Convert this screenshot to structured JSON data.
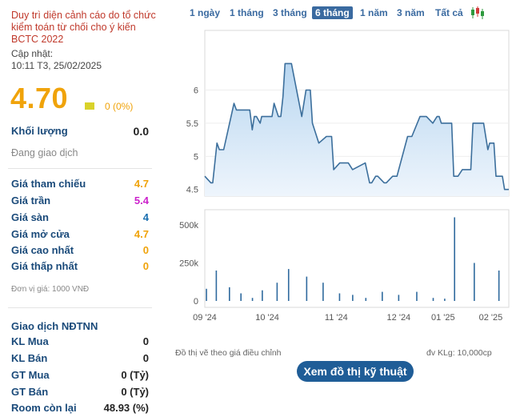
{
  "notice": "Duy trì diện cảnh cáo do tổ chức kiểm toán từ chối cho ý kiến BCTC 2022",
  "updated_label": "Cập nhật:",
  "updated_time": "10:11 T3, 25/02/2025",
  "price": "4.70",
  "change": "0 (0%)",
  "volume_label": "Khối lượng",
  "volume_value": "0.0",
  "trading_status": "Đang giao dịch",
  "price_rows": [
    {
      "label": "Giá tham chiếu",
      "value": "4.7"
    },
    {
      "label": "Giá trần",
      "value": "5.4"
    },
    {
      "label": "Giá sàn",
      "value": "4"
    },
    {
      "label": "Giá mở cửa",
      "value": "4.7"
    },
    {
      "label": "Giá cao nhất",
      "value": "0"
    },
    {
      "label": "Giá thấp nhất",
      "value": "0"
    }
  ],
  "unit_note": "Đơn vị giá: 1000 VNĐ",
  "foreign_title": "Giao dịch NĐTNN",
  "foreign_rows": [
    {
      "label": "KL Mua",
      "value": "0"
    },
    {
      "label": "KL Bán",
      "value": "0"
    },
    {
      "label": "GT Mua",
      "value": "0 (Tỷ)"
    },
    {
      "label": "GT Bán",
      "value": "0 (Tỷ)"
    },
    {
      "label": "Room còn lại",
      "value": "48.93 (%)"
    }
  ],
  "colors": {
    "ceiling": "#cc22cc",
    "floor": "#1a6fb0",
    "reference": "#f0a30a",
    "brand": "#1a4a7a",
    "price_line": "#3c6f9c",
    "area_fill": "#b8d6f0"
  },
  "ranges": [
    {
      "label": "1 ngày",
      "active": false
    },
    {
      "label": "1 tháng",
      "active": false
    },
    {
      "label": "3 tháng",
      "active": false
    },
    {
      "label": "6 tháng",
      "active": true
    },
    {
      "label": "1 năm",
      "active": false
    },
    {
      "label": "3 năm",
      "active": false
    },
    {
      "label": "Tất cả",
      "active": false
    }
  ],
  "chart_type_icon": "candlestick-icon",
  "adjusted_note": "Đồ thị vẽ theo giá điều chỉnh",
  "volume_unit_note": "đv KLg: 10,000cp",
  "tech_button": "Xem đồ thị kỹ thuật",
  "chart_data": [
    {
      "type": "area",
      "ylim": [
        4.4,
        6.9
      ],
      "yticks": [
        4.5,
        5,
        5.5,
        6
      ],
      "ytick_labels": [
        "4.5",
        "5",
        "5.5",
        "6"
      ],
      "xlim": [
        0,
        100
      ],
      "x": [
        0,
        2,
        2.6,
        4,
        4.8,
        6.2,
        9.6,
        10.4,
        14.8,
        15.6,
        16.3,
        17,
        18.2,
        18.7,
        22.1,
        22.8,
        24.2,
        25,
        25.7,
        26.4,
        28.5,
        31.9,
        33.3,
        34,
        34.7,
        35.4,
        37.5,
        40,
        41.7,
        42.4,
        44.4,
        45.2,
        47.2,
        48.6,
        52.8,
        54.2,
        54.9,
        56.2,
        56.9,
        59,
        59.7,
        61.8,
        62.5,
        63.2,
        66.7,
        68.1,
        70.8,
        72.9,
        75,
        76.4,
        77.1,
        77.8,
        81.2,
        81.9,
        83.3,
        84.7,
        86.1,
        87.5,
        88.2,
        90.3,
        91.7,
        93.1,
        93.7,
        95.1,
        95.8,
        96.5,
        97.9,
        98.6,
        100
      ],
      "y": [
        4.7,
        4.6,
        4.6,
        5.2,
        5.1,
        5.1,
        5.8,
        5.7,
        5.7,
        5.4,
        5.6,
        5.6,
        5.5,
        5.6,
        5.6,
        5.8,
        5.6,
        5.6,
        5.9,
        6.4,
        6.4,
        5.6,
        6.0,
        6.0,
        6.0,
        5.5,
        5.2,
        5.3,
        5.3,
        4.8,
        4.9,
        4.9,
        4.9,
        4.8,
        4.9,
        4.6,
        4.6,
        4.7,
        4.7,
        4.6,
        4.6,
        4.7,
        4.7,
        4.7,
        5.3,
        5.3,
        5.6,
        5.6,
        5.5,
        5.6,
        5.6,
        5.5,
        5.5,
        4.7,
        4.7,
        4.8,
        4.8,
        4.8,
        5.5,
        5.5,
        5.5,
        5.1,
        5.2,
        5.2,
        4.7,
        4.7,
        4.7,
        4.5,
        4.5
      ],
      "line_color": "#3c6f9c",
      "fill_color": "#b8d6f0"
    },
    {
      "type": "bar",
      "ylim": [
        0,
        600000
      ],
      "yticks": [
        0,
        250000,
        500000
      ],
      "ytick_labels": [
        "0",
        "250k",
        "500k"
      ],
      "x": [
        1,
        7,
        15,
        22,
        29,
        35,
        44,
        51,
        62,
        72,
        82,
        90,
        98,
        108,
        118,
        129,
        139,
        146,
        152,
        164,
        179
      ],
      "values": [
        80000,
        200000,
        90000,
        50000,
        20000,
        70000,
        120000,
        210000,
        160000,
        120000,
        50000,
        40000,
        20000,
        60000,
        40000,
        60000,
        20000,
        15000,
        550000,
        250000,
        200000
      ],
      "xlim": [
        0,
        185
      ],
      "categories": [
        "09 '24",
        "10 '24",
        "11 '24",
        "12 '24",
        "01 '25",
        "02 '25"
      ],
      "category_x": [
        0,
        38,
        80,
        118,
        145,
        174
      ]
    }
  ]
}
